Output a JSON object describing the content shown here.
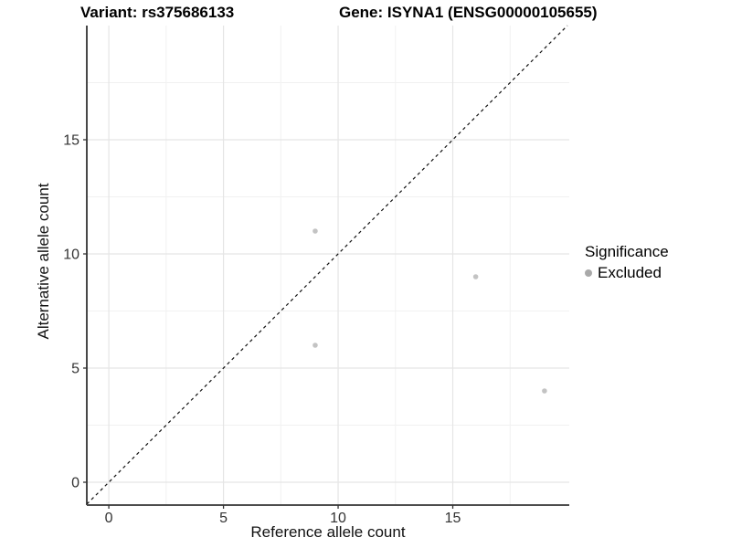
{
  "header": {
    "variant_label": "Variant: rs375686133",
    "gene_label": "Gene: ISYNA1 (ENSG00000105655)"
  },
  "axes": {
    "x_title": "Reference allele count",
    "y_title": "Alternative allele count"
  },
  "legend": {
    "title": "Significance",
    "items": [
      {
        "label": "Excluded",
        "marker": "circle",
        "color": "#a9a9a9"
      }
    ]
  },
  "chart_data": {
    "type": "scatter",
    "title": "Variant: rs375686133   Gene: ISYNA1 (ENSG00000105655)",
    "xlabel": "Reference allele count",
    "ylabel": "Alternative allele count",
    "xlim": [
      -0.96,
      20.08
    ],
    "ylim": [
      -1,
      20
    ],
    "x_ticks": [
      0,
      5,
      10,
      15
    ],
    "y_ticks": [
      0,
      5,
      10,
      15
    ],
    "x_minor_ticks": [
      2.5,
      7.5,
      12.5,
      17.5
    ],
    "y_minor_ticks": [
      2.5,
      7.5,
      12.5,
      17.5
    ],
    "grid": true,
    "legend_position": "right",
    "series": [
      {
        "name": "Excluded",
        "color": "#c3c3c3",
        "points": [
          {
            "x": 9,
            "y": 11
          },
          {
            "x": 9,
            "y": 6
          },
          {
            "x": 16,
            "y": 9
          },
          {
            "x": 19,
            "y": 4
          }
        ]
      }
    ],
    "reference_line": {
      "kind": "identity",
      "style": "dashed",
      "color": "#111111"
    }
  },
  "style": {
    "grid_major_color": "#e5e5e5",
    "grid_minor_color": "#f1f1f1",
    "axis_line_color": "#333333",
    "tick_label_color": "#333333",
    "background": "#ffffff"
  }
}
